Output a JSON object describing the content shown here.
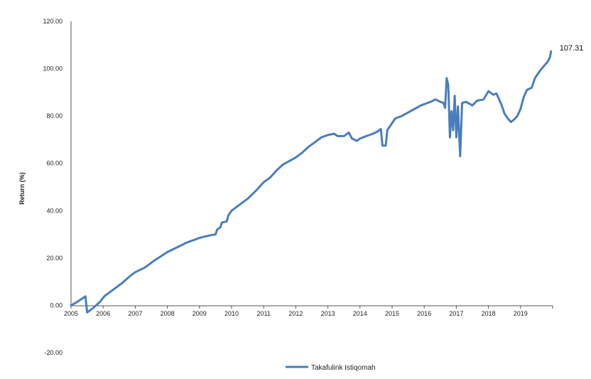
{
  "chart_data": {
    "type": "line",
    "title": "",
    "xlabel": "",
    "ylabel": "Return (%)",
    "ylim": [
      -20,
      120
    ],
    "xlim": [
      2005,
      2020
    ],
    "y_ticks": [
      "-20.00",
      "0.00",
      "20.00",
      "40.00",
      "60.00",
      "80.00",
      "100.00",
      "120.00"
    ],
    "x_ticks": [
      "2005",
      "2006",
      "2007",
      "2008",
      "2009",
      "2010",
      "2011",
      "2012",
      "2013",
      "2014",
      "2015",
      "2016",
      "2017",
      "2018",
      "2019"
    ],
    "grid": false,
    "legend_position": "bottom",
    "end_label": "107.31",
    "series": [
      {
        "name": "Takafulink Istiqomah",
        "color": "#4a7ebb",
        "points": [
          [
            2005.0,
            0.0
          ],
          [
            2005.2,
            1.5
          ],
          [
            2005.45,
            3.8
          ],
          [
            2005.5,
            -3.0
          ],
          [
            2005.7,
            -1.0
          ],
          [
            2005.9,
            1.5
          ],
          [
            2006.05,
            4.0
          ],
          [
            2006.3,
            6.5
          ],
          [
            2006.6,
            9.5
          ],
          [
            2006.85,
            12.5
          ],
          [
            2007.0,
            14.0
          ],
          [
            2007.3,
            16.0
          ],
          [
            2007.6,
            19.0
          ],
          [
            2008.0,
            22.5
          ],
          [
            2008.3,
            24.5
          ],
          [
            2008.6,
            26.5
          ],
          [
            2009.0,
            28.5
          ],
          [
            2009.3,
            29.5
          ],
          [
            2009.5,
            30.0
          ],
          [
            2009.55,
            32.0
          ],
          [
            2009.65,
            33.0
          ],
          [
            2009.7,
            35.0
          ],
          [
            2009.85,
            35.5
          ],
          [
            2009.9,
            38.0
          ],
          [
            2010.0,
            40.0
          ],
          [
            2010.2,
            42.0
          ],
          [
            2010.5,
            45.0
          ],
          [
            2010.8,
            49.0
          ],
          [
            2011.0,
            52.0
          ],
          [
            2011.2,
            54.0
          ],
          [
            2011.4,
            57.0
          ],
          [
            2011.6,
            59.5
          ],
          [
            2011.8,
            61.0
          ],
          [
            2012.0,
            62.5
          ],
          [
            2012.2,
            64.5
          ],
          [
            2012.4,
            67.0
          ],
          [
            2012.6,
            69.0
          ],
          [
            2012.8,
            71.0
          ],
          [
            2013.0,
            72.0
          ],
          [
            2013.2,
            72.5
          ],
          [
            2013.3,
            71.5
          ],
          [
            2013.5,
            71.5
          ],
          [
            2013.65,
            73.0
          ],
          [
            2013.75,
            70.5
          ],
          [
            2013.9,
            69.5
          ],
          [
            2014.0,
            70.5
          ],
          [
            2014.2,
            71.5
          ],
          [
            2014.4,
            72.5
          ],
          [
            2014.55,
            73.5
          ],
          [
            2014.65,
            74.5
          ],
          [
            2014.7,
            67.5
          ],
          [
            2014.8,
            67.5
          ],
          [
            2014.85,
            74.0
          ],
          [
            2015.0,
            77.0
          ],
          [
            2015.1,
            79.0
          ],
          [
            2015.3,
            80.0
          ],
          [
            2015.5,
            81.5
          ],
          [
            2015.7,
            83.0
          ],
          [
            2015.9,
            84.5
          ],
          [
            2016.0,
            85.0
          ],
          [
            2016.2,
            86.0
          ],
          [
            2016.35,
            87.0
          ],
          [
            2016.5,
            86.0
          ],
          [
            2016.6,
            85.5
          ],
          [
            2016.65,
            83.5
          ],
          [
            2016.7,
            96.0
          ],
          [
            2016.75,
            93.0
          ],
          [
            2016.8,
            71.0
          ],
          [
            2016.85,
            82.0
          ],
          [
            2016.9,
            74.0
          ],
          [
            2016.95,
            88.5
          ],
          [
            2017.0,
            71.0
          ],
          [
            2017.05,
            84.0
          ],
          [
            2017.08,
            75.0
          ],
          [
            2017.12,
            63.0
          ],
          [
            2017.18,
            85.5
          ],
          [
            2017.3,
            86.0
          ],
          [
            2017.5,
            84.5
          ],
          [
            2017.65,
            86.5
          ],
          [
            2017.85,
            87.0
          ],
          [
            2018.0,
            90.5
          ],
          [
            2018.15,
            89.0
          ],
          [
            2018.25,
            89.5
          ],
          [
            2018.4,
            85.0
          ],
          [
            2018.5,
            81.0
          ],
          [
            2018.6,
            79.0
          ],
          [
            2018.7,
            77.5
          ],
          [
            2018.8,
            78.5
          ],
          [
            2018.9,
            80.0
          ],
          [
            2019.0,
            83.0
          ],
          [
            2019.1,
            88.0
          ],
          [
            2019.2,
            91.0
          ],
          [
            2019.35,
            92.0
          ],
          [
            2019.45,
            96.0
          ],
          [
            2019.6,
            99.0
          ],
          [
            2019.75,
            101.5
          ],
          [
            2019.85,
            103.0
          ],
          [
            2019.92,
            105.0
          ],
          [
            2019.95,
            107.31
          ]
        ]
      }
    ]
  }
}
